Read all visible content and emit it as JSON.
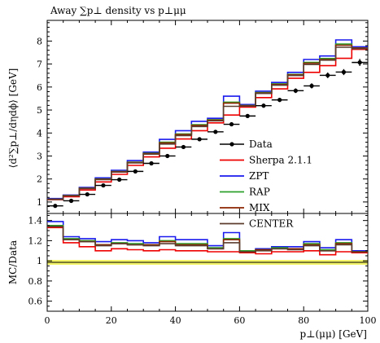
{
  "chart_data": {
    "type": "line",
    "title": "Away ∑p⊥ density vs p⊥μμ",
    "xlabel": "p⊥(μμ) [GeV]",
    "ylabel": "⟨d²∑p⊥/dηdϕ⟩ [GeV]",
    "ratio_ylabel": "MC/Data",
    "xlim": [
      0,
      100
    ],
    "ylim": [
      0.5,
      8.9
    ],
    "ratio_ylim": [
      0.5,
      1.47
    ],
    "xticks": [
      "0",
      "20",
      "40",
      "60",
      "80",
      "100"
    ],
    "yticks": [
      "1",
      "2",
      "3",
      "4",
      "5",
      "6",
      "7",
      "8"
    ],
    "ratio_yticks": [
      "0.6",
      "0.8",
      "1",
      "1.2",
      "1.4"
    ],
    "legend_position": "right",
    "bin_edges": [
      0,
      5,
      10,
      15,
      20,
      25,
      30,
      35,
      40,
      45,
      50,
      55,
      60,
      65,
      70,
      75,
      80,
      85,
      90,
      95,
      100
    ],
    "data": {
      "name": "Data",
      "x": [
        2.5,
        7.5,
        12.5,
        17.5,
        22.5,
        27.5,
        32.5,
        37.5,
        42.5,
        47.5,
        52.5,
        57.5,
        62.5,
        67.5,
        72.5,
        77.5,
        82.5,
        87.5,
        92.5,
        97.5
      ],
      "y": [
        0.83,
        1.05,
        1.33,
        1.72,
        1.97,
        2.33,
        2.68,
        3.0,
        3.39,
        3.73,
        4.05,
        4.38,
        4.74,
        5.19,
        5.44,
        5.84,
        6.05,
        6.51,
        6.65,
        7.07
      ],
      "yerr": [
        0.04,
        0.04,
        0.05,
        0.05,
        0.05,
        0.05,
        0.06,
        0.06,
        0.06,
        0.07,
        0.07,
        0.08,
        0.08,
        0.09,
        0.09,
        0.1,
        0.11,
        0.12,
        0.13,
        0.15
      ],
      "color": "#000000"
    },
    "series": [
      {
        "name": "Sherpa 2.1.1",
        "color": "#ee0000",
        "values": [
          1.1,
          1.23,
          1.52,
          1.87,
          2.2,
          2.59,
          2.96,
          3.34,
          3.74,
          4.1,
          4.44,
          4.78,
          5.13,
          5.54,
          5.92,
          6.38,
          6.64,
          6.93,
          7.25,
          7.64
        ],
        "ratio": [
          1.33,
          1.18,
          1.14,
          1.1,
          1.12,
          1.11,
          1.1,
          1.11,
          1.1,
          1.1,
          1.09,
          1.09,
          1.08,
          1.07,
          1.09,
          1.09,
          1.1,
          1.06,
          1.09,
          1.08
        ]
      },
      {
        "name": "ZPT",
        "color": "#1a1aee",
        "values": [
          1.15,
          1.3,
          1.63,
          2.05,
          2.38,
          2.8,
          3.17,
          3.72,
          4.1,
          4.51,
          4.64,
          5.6,
          5.24,
          5.82,
          6.2,
          6.64,
          7.2,
          7.35,
          8.05,
          7.75
        ],
        "ratio": [
          1.39,
          1.24,
          1.22,
          1.19,
          1.21,
          1.2,
          1.18,
          1.24,
          1.21,
          1.21,
          1.15,
          1.28,
          1.1,
          1.12,
          1.14,
          1.14,
          1.19,
          1.13,
          1.21,
          1.1
        ]
      },
      {
        "name": "RAP",
        "color": "#2ca02c",
        "values": [
          1.12,
          1.28,
          1.6,
          2.0,
          2.33,
          2.73,
          3.12,
          3.6,
          3.96,
          4.36,
          4.58,
          5.34,
          5.2,
          5.76,
          6.14,
          6.55,
          7.07,
          7.24,
          7.87,
          7.7
        ],
        "ratio": [
          1.35,
          1.22,
          1.2,
          1.16,
          1.18,
          1.17,
          1.16,
          1.2,
          1.17,
          1.17,
          1.13,
          1.22,
          1.1,
          1.11,
          1.13,
          1.12,
          1.17,
          1.11,
          1.18,
          1.09
        ]
      },
      {
        "name": "MIX",
        "color": "#8b2500",
        "values": [
          1.12,
          1.28,
          1.59,
          1.99,
          2.32,
          2.72,
          3.1,
          3.57,
          3.93,
          4.33,
          4.56,
          5.3,
          5.19,
          5.74,
          6.11,
          6.53,
          7.04,
          7.2,
          7.82,
          7.69
        ],
        "ratio": [
          1.34,
          1.21,
          1.19,
          1.16,
          1.17,
          1.16,
          1.16,
          1.19,
          1.16,
          1.16,
          1.12,
          1.21,
          1.09,
          1.11,
          1.12,
          1.12,
          1.16,
          1.1,
          1.17,
          1.09
        ]
      },
      {
        "name": "CENTER",
        "color": "#5c3d2e",
        "values": [
          1.11,
          1.27,
          1.58,
          1.97,
          2.3,
          2.7,
          3.08,
          3.52,
          3.89,
          4.28,
          4.53,
          5.16,
          5.17,
          5.72,
          6.08,
          6.5,
          6.98,
          7.17,
          7.73,
          7.67
        ],
        "ratio": [
          1.34,
          1.21,
          1.19,
          1.15,
          1.17,
          1.16,
          1.15,
          1.17,
          1.15,
          1.15,
          1.12,
          1.18,
          1.09,
          1.1,
          1.12,
          1.11,
          1.15,
          1.1,
          1.16,
          1.09
        ]
      }
    ]
  }
}
